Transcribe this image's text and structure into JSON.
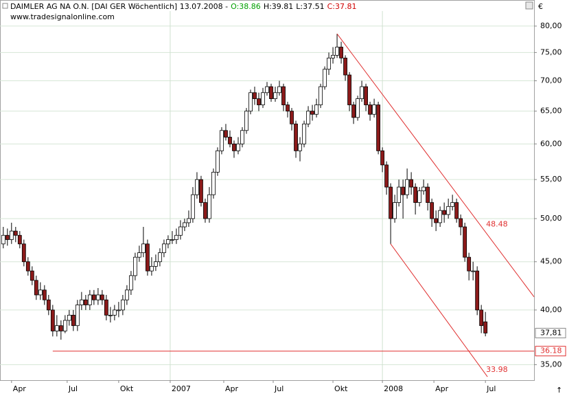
{
  "chart_data": {
    "type": "candlestick",
    "title": "DAIMLER AG NA O.N. [DAI GER  Wöchentlich] 13.07.2008 -",
    "ohlc_labels": [
      "O:38.86",
      "H:39.81",
      "L:37.51",
      "C:37.81"
    ],
    "ohlc_colors": [
      "#00a000",
      "#000000",
      "#000000",
      "#d00000"
    ],
    "source": "www.tradesignalonline.com",
    "unit": "€",
    "log_scale": true,
    "up_color": "#ffffff",
    "down_color": "#8b1a1a",
    "open": [
      47,
      48,
      47.5,
      48.5,
      48,
      47,
      45,
      44,
      43,
      41.5,
      42,
      41,
      40,
      38,
      38.5,
      38,
      39,
      39.5,
      38.5,
      40.5,
      41,
      40.5,
      41.5,
      41,
      41.5,
      41,
      39.5,
      39.5,
      40,
      40,
      41,
      42,
      43.5,
      45.5,
      46,
      47,
      44,
      44.5,
      45,
      46,
      47,
      47.5,
      47.5,
      48,
      49,
      49.5,
      50,
      53,
      55,
      52,
      50,
      53,
      56,
      59,
      62,
      61,
      60,
      59,
      60,
      62,
      65,
      68,
      67,
      66,
      68,
      69,
      67,
      68,
      69,
      66,
      65,
      63,
      59,
      60,
      63,
      65,
      64.5,
      66,
      69,
      72,
      74,
      74.5,
      76,
      74,
      71,
      66,
      64,
      67,
      69,
      66,
      64.5,
      66,
      59,
      57,
      54,
      50,
      52,
      54,
      53,
      55,
      54,
      52,
      53.5,
      54,
      52,
      50,
      49.5,
      51,
      50.5,
      51.5,
      52,
      50,
      49,
      45.5,
      44,
      44,
      40,
      38.86
    ],
    "high": [
      49,
      48.8,
      49.5,
      49,
      48.5,
      47.5,
      45.5,
      44.5,
      43.5,
      42.8,
      42.5,
      41.5,
      40.5,
      39.5,
      39,
      39.5,
      40,
      40,
      41,
      41.8,
      41.5,
      42,
      42,
      42.2,
      42,
      41.5,
      40.3,
      40.5,
      40.8,
      41.5,
      42.5,
      44,
      46,
      46.8,
      49,
      47.5,
      45.5,
      45.8,
      46.5,
      47.5,
      48,
      48.5,
      48.8,
      49.8,
      50,
      51,
      54,
      56,
      55.5,
      52.5,
      54,
      56.5,
      59.5,
      62.5,
      63,
      62,
      60.5,
      61,
      62.5,
      65.5,
      68.5,
      69,
      68,
      68.8,
      69.8,
      69.5,
      69,
      70,
      69.5,
      66.5,
      65.5,
      63.5,
      61,
      63.5,
      65.8,
      66,
      67,
      69.5,
      72.5,
      75,
      76,
      78.5,
      77,
      74.5,
      71.5,
      66.5,
      67.5,
      70,
      69.5,
      66.5,
      67,
      66.5,
      59.5,
      57.5,
      54.5,
      53,
      55,
      55,
      56.5,
      56,
      54.5,
      54,
      55,
      54.5,
      52.5,
      51,
      51.5,
      52,
      52.5,
      53,
      52.5,
      50.5,
      49.5,
      46,
      45,
      44.5,
      40.5,
      39.81
    ],
    "low": [
      46.5,
      46.8,
      47,
      47.2,
      46.5,
      44.5,
      43.5,
      42.5,
      41,
      41,
      40.5,
      39.5,
      37.5,
      37.5,
      37.2,
      37.8,
      38.5,
      38,
      38,
      40,
      40,
      40,
      40.5,
      40.5,
      40.5,
      39,
      38.8,
      39,
      39.3,
      39.5,
      40.5,
      41.5,
      43,
      45,
      45.5,
      43.5,
      43.5,
      44,
      44.5,
      45.5,
      46.5,
      47,
      47,
      47.5,
      48.5,
      49,
      49.5,
      52.5,
      51.5,
      49.5,
      49.5,
      52.5,
      55.5,
      58.5,
      60.5,
      59.5,
      58,
      58.5,
      59.5,
      61.5,
      64.5,
      66,
      65,
      65.5,
      67.5,
      66.5,
      66.5,
      67.5,
      65,
      64,
      62,
      58,
      57.5,
      59.5,
      62.5,
      63.5,
      64,
      65.5,
      68.5,
      71,
      73,
      74,
      73,
      70,
      65,
      63,
      63.5,
      66.5,
      65,
      63.5,
      64,
      58.5,
      56,
      53,
      47,
      49.5,
      51.5,
      50,
      52.5,
      53,
      50.5,
      51.5,
      53,
      51,
      49,
      48.5,
      49,
      49.5,
      50,
      51,
      49.5,
      48,
      45,
      43,
      43,
      39.5,
      37.8,
      37.51
    ],
    "close": [
      48,
      47.5,
      48.5,
      48,
      47,
      45,
      44,
      43,
      41.5,
      42,
      41,
      40,
      38,
      38.5,
      38,
      39,
      39.5,
      38.5,
      40.5,
      41,
      40.5,
      41.5,
      41,
      41.5,
      41,
      39.5,
      39.5,
      40,
      40,
      41,
      42,
      43.5,
      45.5,
      46,
      47,
      44,
      44.5,
      45,
      46,
      47,
      47.5,
      47.5,
      48,
      49,
      49.5,
      50,
      53,
      55,
      52,
      50,
      53,
      56,
      59,
      62,
      61,
      60,
      59,
      60,
      62,
      65,
      68,
      67,
      66,
      68,
      69,
      67,
      68,
      69,
      66,
      65,
      63,
      59,
      60,
      63,
      65,
      64.5,
      66,
      69,
      72,
      74,
      74.5,
      76,
      74,
      71,
      66,
      64,
      67,
      69,
      66,
      64.5,
      66,
      59,
      57,
      54,
      50,
      52,
      54,
      53,
      55,
      54,
      52,
      53.5,
      54,
      52,
      50,
      49.5,
      51,
      50.5,
      51.5,
      52,
      50,
      49,
      45.5,
      44,
      44,
      40,
      38.5,
      37.81
    ],
    "xlim": [
      -0.8,
      128.8
    ],
    "ylim": [
      33.7,
      83
    ],
    "xticks": [
      {
        "value": 2,
        "label": "Apr"
      },
      {
        "value": 15.5,
        "label": "Jul"
      },
      {
        "value": 28,
        "label": "Okt"
      },
      {
        "value": 40.5,
        "label": "2007",
        "major": true
      },
      {
        "value": 53.5,
        "label": "Apr"
      },
      {
        "value": 65.5,
        "label": "Jul"
      },
      {
        "value": 80,
        "label": "Okt"
      },
      {
        "value": 92,
        "label": "2008",
        "major": true
      },
      {
        "value": 104.5,
        "label": "Apr"
      },
      {
        "value": 117,
        "label": "Jul"
      }
    ],
    "yticks": [
      {
        "value": 35,
        "label": "35,00"
      },
      {
        "value": 40,
        "label": "40,00"
      },
      {
        "value": 45,
        "label": "45,00"
      },
      {
        "value": 50,
        "label": "50,00"
      },
      {
        "value": 55,
        "label": "55,00"
      },
      {
        "value": 60,
        "label": "60,00"
      },
      {
        "value": 65,
        "label": "65,00"
      },
      {
        "value": 70,
        "label": "70,00"
      },
      {
        "value": 75,
        "label": "75,00"
      },
      {
        "value": 80,
        "label": "80,00"
      }
    ],
    "grid": true,
    "trendlines": [
      {
        "x": [
          81,
          128.8
        ],
        "values": [
          78.5,
          41.3
        ],
        "color": "#e03030"
      },
      {
        "x": [
          94,
          117.5
        ],
        "values": [
          47,
          33.98
        ],
        "color": "#e03030"
      }
    ],
    "annotations": [
      {
        "x": 117,
        "value": 48.48,
        "color": "#e03030"
      },
      {
        "x": 117,
        "value": 33.98,
        "color": "#e03030"
      }
    ],
    "support": {
      "from": 12,
      "value": 36.18,
      "color": "#e03030"
    },
    "last_price": {
      "value": 37.81,
      "label": "37,81"
    }
  }
}
